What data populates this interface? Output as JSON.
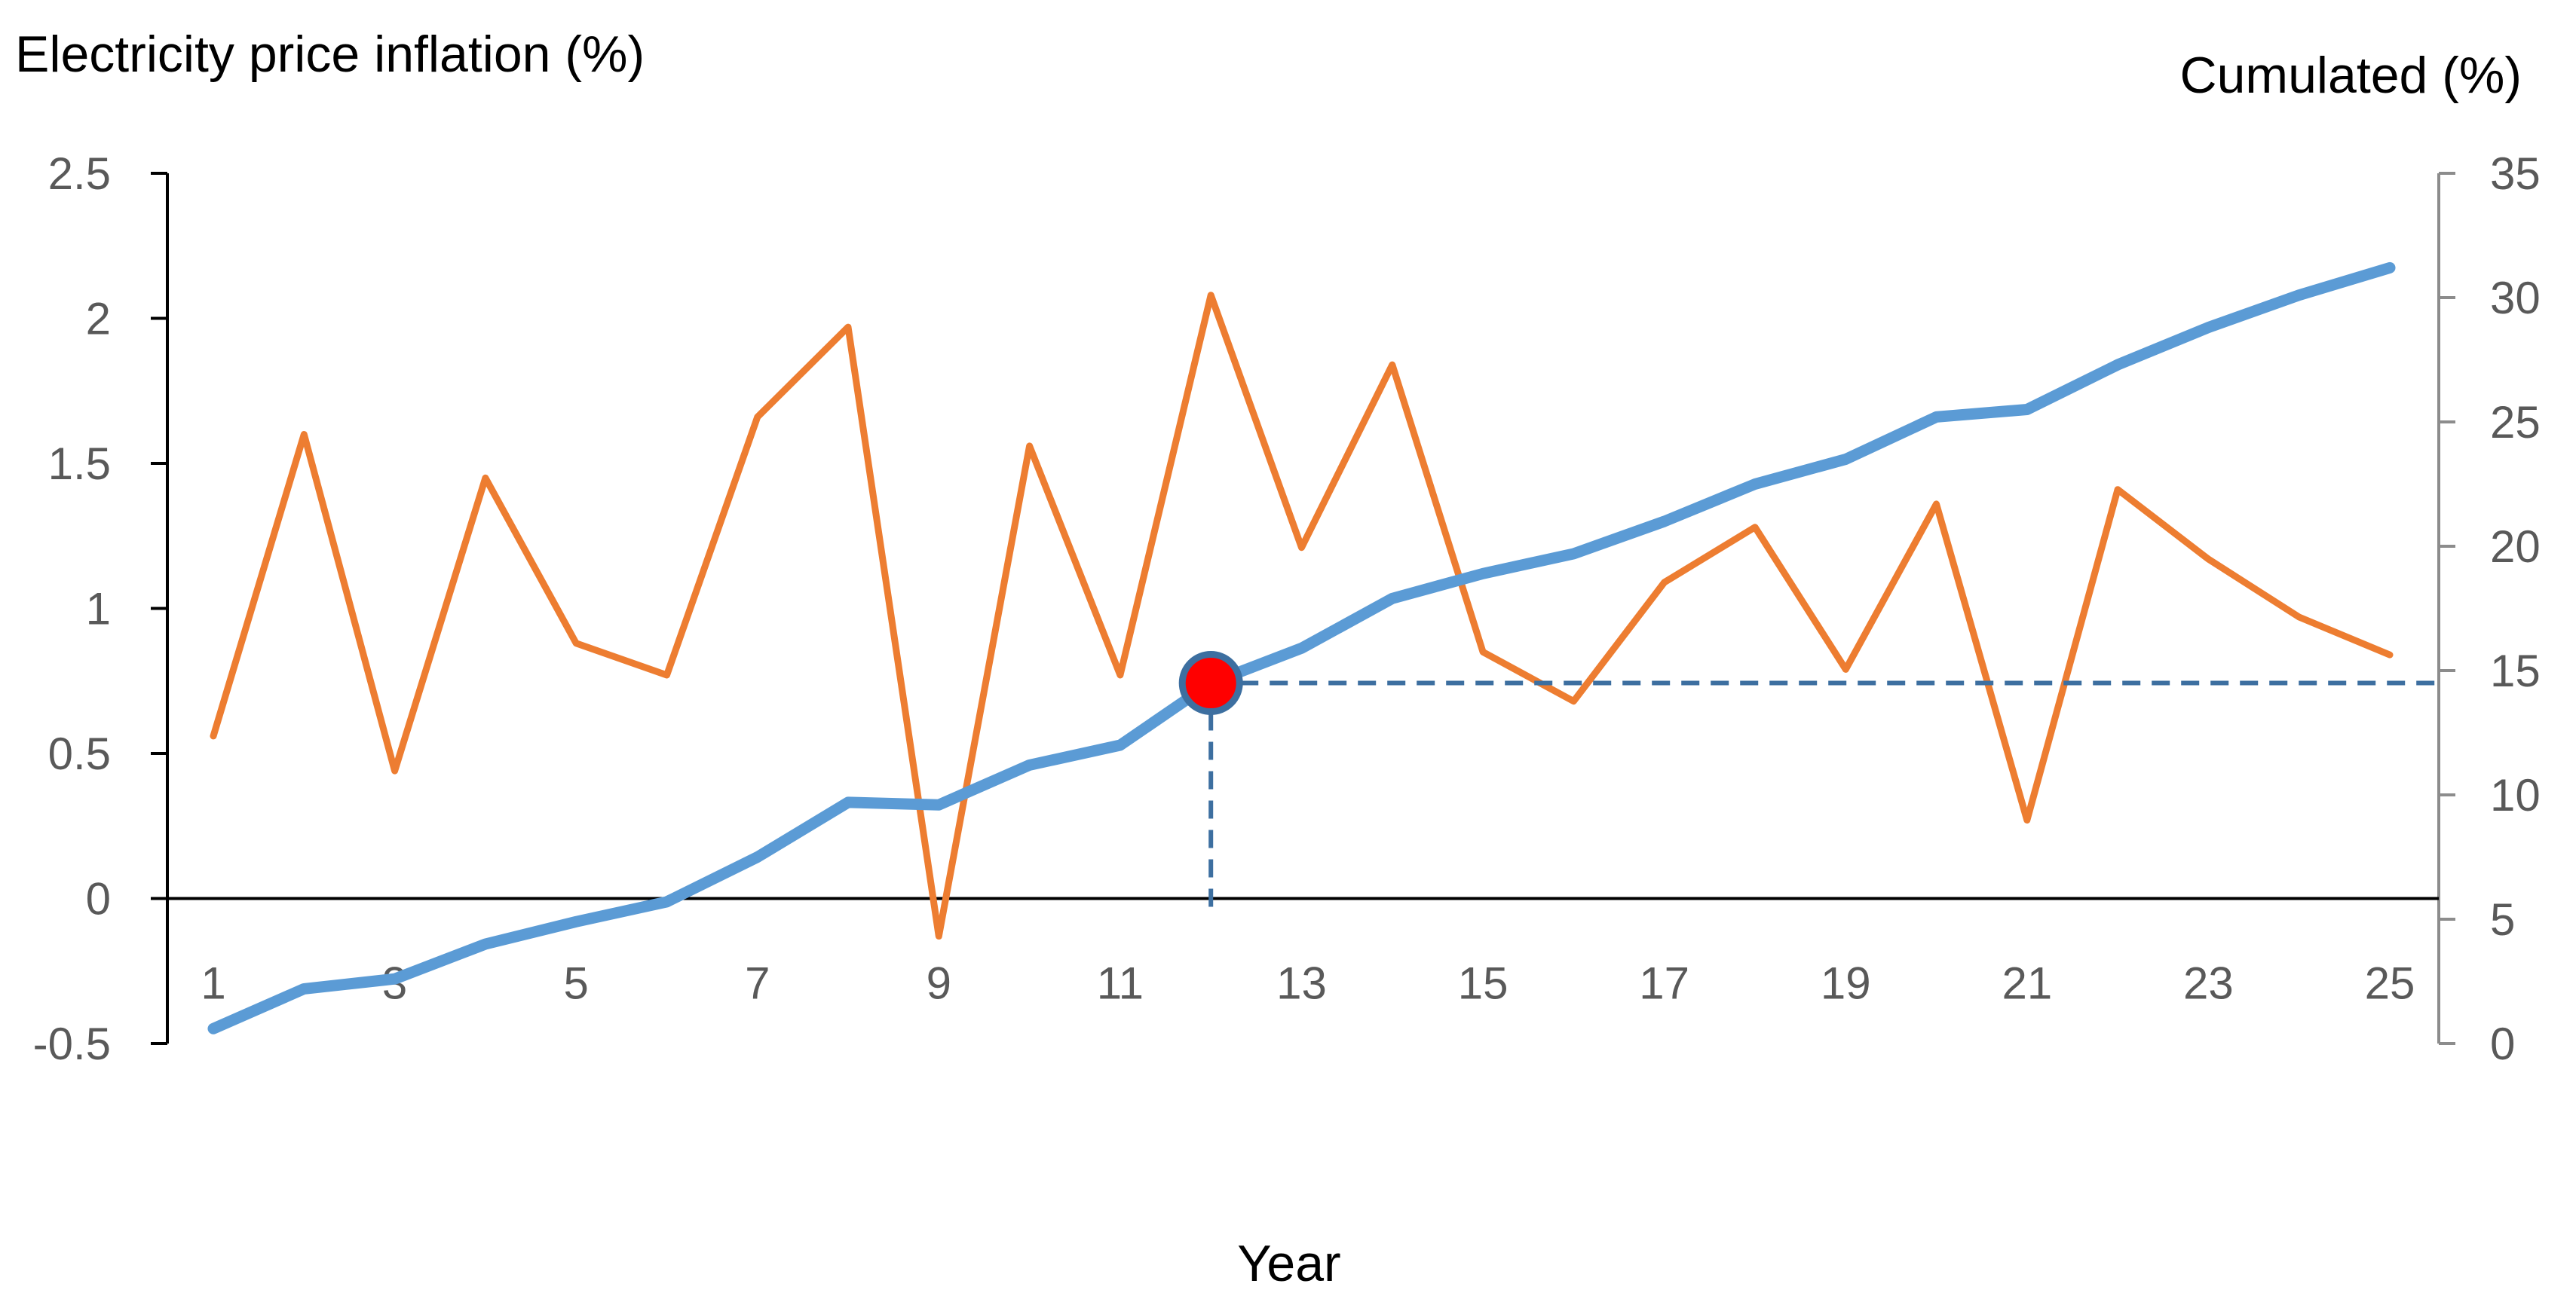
{
  "chart_data": {
    "type": "line",
    "x": [
      1,
      2,
      3,
      4,
      5,
      6,
      7,
      8,
      9,
      10,
      11,
      12,
      13,
      14,
      15,
      16,
      17,
      18,
      19,
      20,
      21,
      22,
      23,
      24,
      25
    ],
    "x_tick_labels": [
      "1",
      "3",
      "5",
      "7",
      "9",
      "11",
      "13",
      "15",
      "17",
      "19",
      "21",
      "23",
      "25"
    ],
    "xlabel": "Year",
    "left_axis": {
      "label": "Electricity price inflation (%)",
      "ylim": [
        -0.5,
        2.5
      ],
      "ticks": [
        "-0.5",
        "0",
        "0.5",
        "1",
        "1.5",
        "2",
        "2.5"
      ],
      "tick_values": [
        -0.5,
        0,
        0.5,
        1,
        1.5,
        2,
        2.5
      ]
    },
    "right_axis": {
      "label": "Cumulated (%)",
      "ylim": [
        0,
        35
      ],
      "ticks": [
        "0",
        "5",
        "10",
        "15",
        "20",
        "25",
        "30",
        "35"
      ],
      "tick_values": [
        0,
        5,
        10,
        15,
        20,
        25,
        30,
        35
      ]
    },
    "series": [
      {
        "axis": "left",
        "color": "#ED7D31",
        "values": [
          0.56,
          1.6,
          0.44,
          1.45,
          0.88,
          0.77,
          1.66,
          1.97,
          -0.13,
          1.56,
          0.77,
          2.08,
          1.21,
          1.84,
          0.85,
          0.68,
          1.09,
          1.28,
          0.79,
          1.36,
          0.27,
          1.41,
          1.17,
          0.97,
          0.84
        ]
      },
      {
        "axis": "right",
        "color": "#5B9BD5",
        "values": [
          0.6,
          2.2,
          2.6,
          4.0,
          4.9,
          5.7,
          7.5,
          9.7,
          9.6,
          11.2,
          12.0,
          14.5,
          15.9,
          17.9,
          18.9,
          19.7,
          21.0,
          22.5,
          23.5,
          25.2,
          25.5,
          27.3,
          28.8,
          30.1,
          31.2
        ]
      }
    ],
    "highlight": {
      "x": 12,
      "right_value": 14.5,
      "color": "#FF0000",
      "ring_color": "#3D6FA0"
    },
    "zero_line": true,
    "grid": false,
    "legend": "none"
  }
}
